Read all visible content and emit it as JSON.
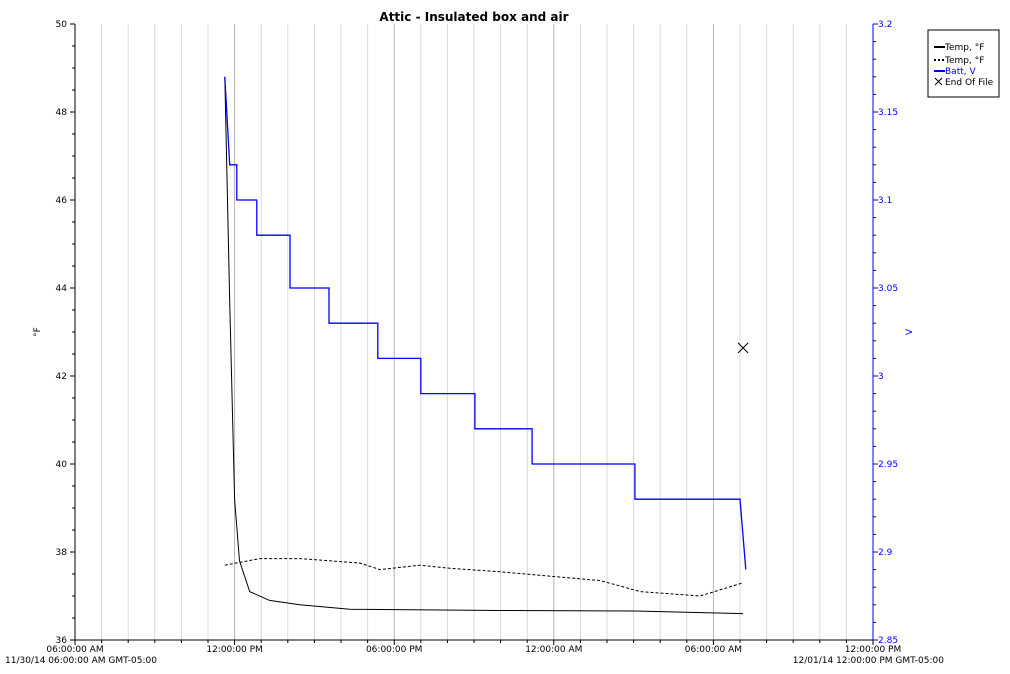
{
  "chart_data": {
    "type": "line",
    "title": "Attic - Insulated box and air",
    "ylabel_left": "°F",
    "ylabel_right": "V",
    "ylim_left": [
      36,
      50
    ],
    "ylim_right": [
      2.85,
      3.2
    ],
    "yticks_left": [
      "36",
      "38",
      "40",
      "42",
      "44",
      "46",
      "48",
      "50"
    ],
    "yticks_right": [
      "2.85",
      "2.9",
      "2.95",
      "3",
      "3.05",
      "3.1",
      "3.15",
      "3.2"
    ],
    "xlim": [
      "2014-11-30T06:00",
      "2014-12-01T12:00"
    ],
    "xticks": [
      "06:00:00 AM",
      "12:00:00 PM",
      "06:00:00 PM",
      "12:00:00 AM",
      "06:00:00 AM",
      "12:00:00 PM"
    ],
    "x_start_label": "11/30/14 06:00:00 AM GMT-05:00",
    "x_end_label": "12/01/14 12:00:00 PM GMT-05:00",
    "grid": "vertical hourly",
    "legend_position": "top-right",
    "colors": {
      "temp1": "#000000",
      "temp2": "#000000",
      "batt": "#0000ff",
      "axis_right": "#0000ff"
    },
    "series": [
      {
        "name": "Temp, °F",
        "axis": "left",
        "style": "solid",
        "color": "#000000",
        "points": [
          [
            "2014-11-30T11:38",
            48.8
          ],
          [
            "2014-11-30T11:49",
            43.7
          ],
          [
            "2014-11-30T12:00",
            39.2
          ],
          [
            "2014-11-30T12:11",
            37.8
          ],
          [
            "2014-11-30T12:34",
            37.1
          ],
          [
            "2014-11-30T13:19",
            36.9
          ],
          [
            "2014-11-30T14:27",
            36.8
          ],
          [
            "2014-11-30T16:20",
            36.7
          ],
          [
            "2014-11-30T22:00",
            36.67
          ],
          [
            "2014-12-01T03:00",
            36.66
          ],
          [
            "2014-12-01T07:07",
            36.6
          ]
        ]
      },
      {
        "name": "Temp, °F",
        "axis": "left",
        "style": "dotted",
        "color": "#000000",
        "points": [
          [
            "2014-11-30T11:38",
            37.7
          ],
          [
            "2014-11-30T12:57",
            37.85
          ],
          [
            "2014-11-30T14:27",
            37.85
          ],
          [
            "2014-11-30T15:35",
            37.8
          ],
          [
            "2014-11-30T16:42",
            37.75
          ],
          [
            "2014-11-30T17:28",
            37.6
          ],
          [
            "2014-11-30T18:58",
            37.7
          ],
          [
            "2014-11-30T20:06",
            37.63
          ],
          [
            "2014-11-30T21:59",
            37.55
          ],
          [
            "2014-11-30T23:52",
            37.45
          ],
          [
            "2014-12-01T01:45",
            37.35
          ],
          [
            "2014-12-01T03:15",
            37.1
          ],
          [
            "2014-12-01T05:30",
            37.0
          ],
          [
            "2014-12-01T07:07",
            37.3
          ]
        ]
      },
      {
        "name": "Batt, V",
        "axis": "right",
        "style": "step",
        "color": "#0000ff",
        "points": [
          [
            "2014-11-30T11:38",
            3.17
          ],
          [
            "2014-11-30T11:49",
            3.12
          ],
          [
            "2014-11-30T12:05",
            3.12
          ],
          [
            "2014-11-30T12:05",
            3.1
          ],
          [
            "2014-11-30T12:50",
            3.1
          ],
          [
            "2014-11-30T12:50",
            3.08
          ],
          [
            "2014-11-30T14:05",
            3.08
          ],
          [
            "2014-11-30T14:05",
            3.05
          ],
          [
            "2014-11-30T15:33",
            3.05
          ],
          [
            "2014-11-30T15:33",
            3.03
          ],
          [
            "2014-11-30T17:23",
            3.03
          ],
          [
            "2014-11-30T17:23",
            3.01
          ],
          [
            "2014-11-30T19:00",
            3.01
          ],
          [
            "2014-11-30T19:00",
            2.99
          ],
          [
            "2014-11-30T21:02",
            2.99
          ],
          [
            "2014-11-30T21:02",
            2.97
          ],
          [
            "2014-11-30T23:11",
            2.97
          ],
          [
            "2014-11-30T23:11",
            2.95
          ],
          [
            "2014-12-01T03:03",
            2.95
          ],
          [
            "2014-12-01T03:03",
            2.93
          ],
          [
            "2014-12-01T07:00",
            2.93
          ],
          [
            "2014-12-01T07:13",
            2.89
          ]
        ]
      }
    ],
    "markers": [
      {
        "name": "End Of File",
        "symbol": "x",
        "axis": "right",
        "x": "2014-12-01T07:07",
        "y": 3.016
      }
    ]
  }
}
